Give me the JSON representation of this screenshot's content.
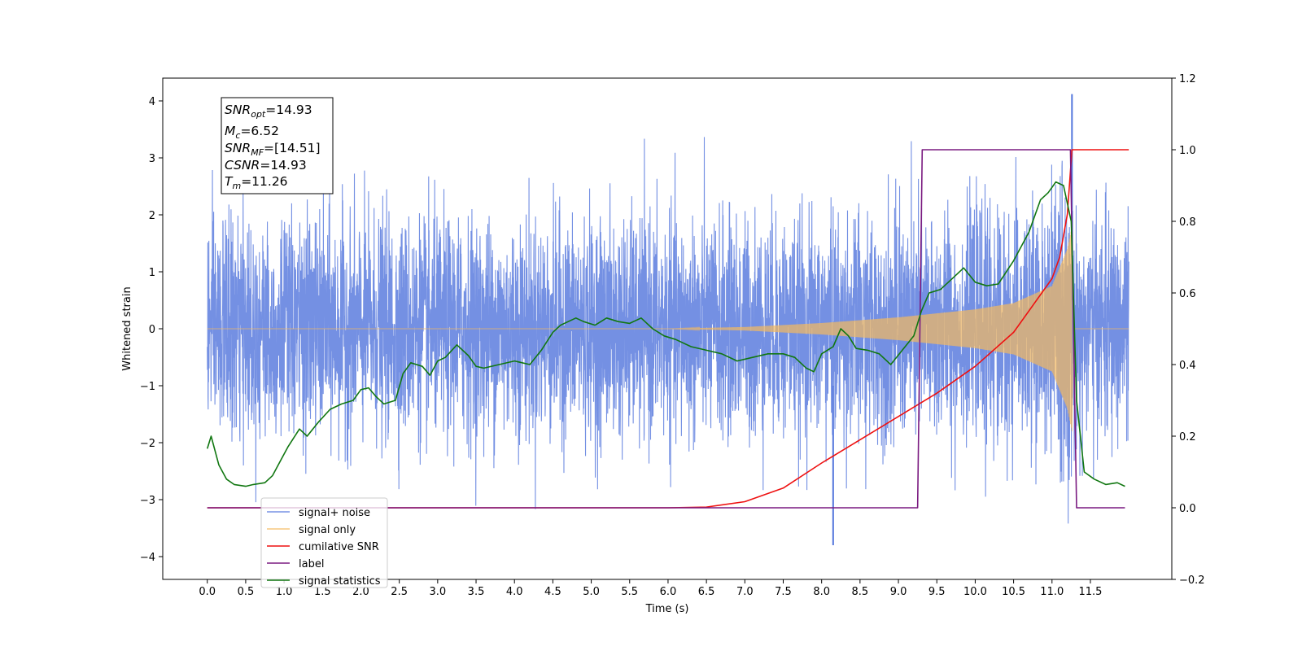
{
  "chart_data": {
    "type": "line",
    "title": "",
    "xlabel": "Time (s)",
    "ylabel": "Whitened strain",
    "xlim": [
      -0.58,
      12.56
    ],
    "ylim": [
      -4.4,
      4.4
    ],
    "y2lim": [
      -0.2,
      1.2
    ],
    "x_ticks": [
      "0.0",
      "0.5",
      "1.0",
      "1.5",
      "2.0",
      "2.5",
      "3.0",
      "3.5",
      "4.0",
      "4.5",
      "5.0",
      "5.5",
      "6.0",
      "6.5",
      "7.0",
      "7.5",
      "8.0",
      "8.5",
      "9.0",
      "9.5",
      "10.0",
      "10.5",
      "11.0",
      "11.5"
    ],
    "y_ticks": [
      "4",
      "3",
      "2",
      "1",
      "0",
      "−1",
      "−2",
      "−3",
      "−4"
    ],
    "y2_ticks": [
      "1.2",
      "1.0",
      "0.8",
      "0.6",
      "0.4",
      "0.2",
      "0.0",
      "−0.2"
    ],
    "grid": false,
    "legend_position": "lower-left",
    "info_box": {
      "snr_opt": {
        "base": "SNR",
        "sub": "opt",
        "value": "=14.93"
      },
      "mc": {
        "base": "M",
        "sub": "c",
        "value": "=6.52"
      },
      "snr_mf": {
        "base": "SNR",
        "sub": "MF",
        "value": "=[14.51]"
      },
      "csnr": {
        "base": "CSNR",
        "value": "=14.93"
      },
      "tm": {
        "base": "T",
        "sub": "m",
        "value": "=11.26"
      }
    },
    "series": [
      {
        "name": "signal+ noise",
        "axis": "left",
        "color": "#5577dd",
        "description_values": {
          "x_range": [
            0.0,
            12.0
          ],
          "typical_amplitude": 1.2,
          "max": 4.12,
          "max_at": 11.26,
          "min": -3.8,
          "min_at": 8.15
        }
      },
      {
        "name": "signal only",
        "axis": "left",
        "color": "#f5b95e",
        "chirp": {
          "start": 0.0,
          "end": 11.26,
          "after": 12.0,
          "amp_at": [
            [
              0.0,
              0.0
            ],
            [
              6.0,
              0.0
            ],
            [
              7.0,
              0.03
            ],
            [
              8.0,
              0.1
            ],
            [
              9.0,
              0.2
            ],
            [
              9.5,
              0.27
            ],
            [
              10.0,
              0.34
            ],
            [
              10.5,
              0.45
            ],
            [
              11.0,
              0.75
            ],
            [
              11.2,
              1.4
            ],
            [
              11.26,
              1.8
            ]
          ]
        }
      },
      {
        "name": "cumilative SNR",
        "axis": "right",
        "color": "#ee1111",
        "x": [
          0.0,
          6.0,
          6.5,
          7.0,
          7.5,
          8.0,
          8.5,
          9.0,
          9.5,
          10.0,
          10.5,
          11.0,
          11.1,
          11.2,
          11.26,
          11.3,
          12.0
        ],
        "values": [
          0.0,
          0.0,
          0.002,
          0.017,
          0.055,
          0.125,
          0.19,
          0.255,
          0.32,
          0.395,
          0.49,
          0.64,
          0.7,
          0.82,
          1.0,
          1.0,
          1.0
        ]
      },
      {
        "name": "label",
        "axis": "right",
        "color": "#7a1a80",
        "x": [
          0.0,
          9.25,
          9.31,
          11.24,
          11.32,
          11.95
        ],
        "values": [
          0.0,
          0.0,
          1.0,
          1.0,
          0.0,
          0.0
        ]
      },
      {
        "name": "signal statistics",
        "axis": "right",
        "color": "#117711",
        "x": [
          0.0,
          0.05,
          0.15,
          0.25,
          0.35,
          0.5,
          0.6,
          0.75,
          0.85,
          0.95,
          1.05,
          1.2,
          1.3,
          1.45,
          1.6,
          1.75,
          1.9,
          2.0,
          2.1,
          2.2,
          2.3,
          2.45,
          2.55,
          2.65,
          2.8,
          2.9,
          3.0,
          3.1,
          3.25,
          3.4,
          3.5,
          3.6,
          3.8,
          4.0,
          4.2,
          4.35,
          4.5,
          4.6,
          4.7,
          4.8,
          4.9,
          5.05,
          5.2,
          5.35,
          5.5,
          5.65,
          5.8,
          5.95,
          6.1,
          6.3,
          6.5,
          6.7,
          6.9,
          7.1,
          7.3,
          7.5,
          7.65,
          7.8,
          7.9,
          8.0,
          8.15,
          8.25,
          8.35,
          8.45,
          8.6,
          8.75,
          8.9,
          9.05,
          9.2,
          9.3,
          9.4,
          9.55,
          9.7,
          9.85,
          10.0,
          10.15,
          10.3,
          10.5,
          10.7,
          10.85,
          10.95,
          11.05,
          11.15,
          11.25,
          11.32,
          11.42,
          11.55,
          11.7,
          11.85,
          11.95
        ],
        "values": [
          0.165,
          0.2,
          0.12,
          0.08,
          0.065,
          0.06,
          0.065,
          0.07,
          0.09,
          0.13,
          0.17,
          0.22,
          0.2,
          0.24,
          0.275,
          0.29,
          0.3,
          0.33,
          0.335,
          0.31,
          0.29,
          0.3,
          0.375,
          0.405,
          0.395,
          0.37,
          0.41,
          0.42,
          0.455,
          0.425,
          0.395,
          0.39,
          0.4,
          0.41,
          0.4,
          0.44,
          0.49,
          0.51,
          0.52,
          0.53,
          0.52,
          0.51,
          0.53,
          0.52,
          0.515,
          0.53,
          0.5,
          0.48,
          0.47,
          0.45,
          0.44,
          0.43,
          0.41,
          0.42,
          0.43,
          0.43,
          0.42,
          0.39,
          0.38,
          0.43,
          0.45,
          0.5,
          0.48,
          0.445,
          0.44,
          0.43,
          0.4,
          0.44,
          0.48,
          0.55,
          0.6,
          0.61,
          0.64,
          0.67,
          0.63,
          0.62,
          0.625,
          0.69,
          0.77,
          0.86,
          0.88,
          0.91,
          0.9,
          0.8,
          0.3,
          0.1,
          0.08,
          0.065,
          0.07,
          0.06
        ]
      }
    ]
  }
}
